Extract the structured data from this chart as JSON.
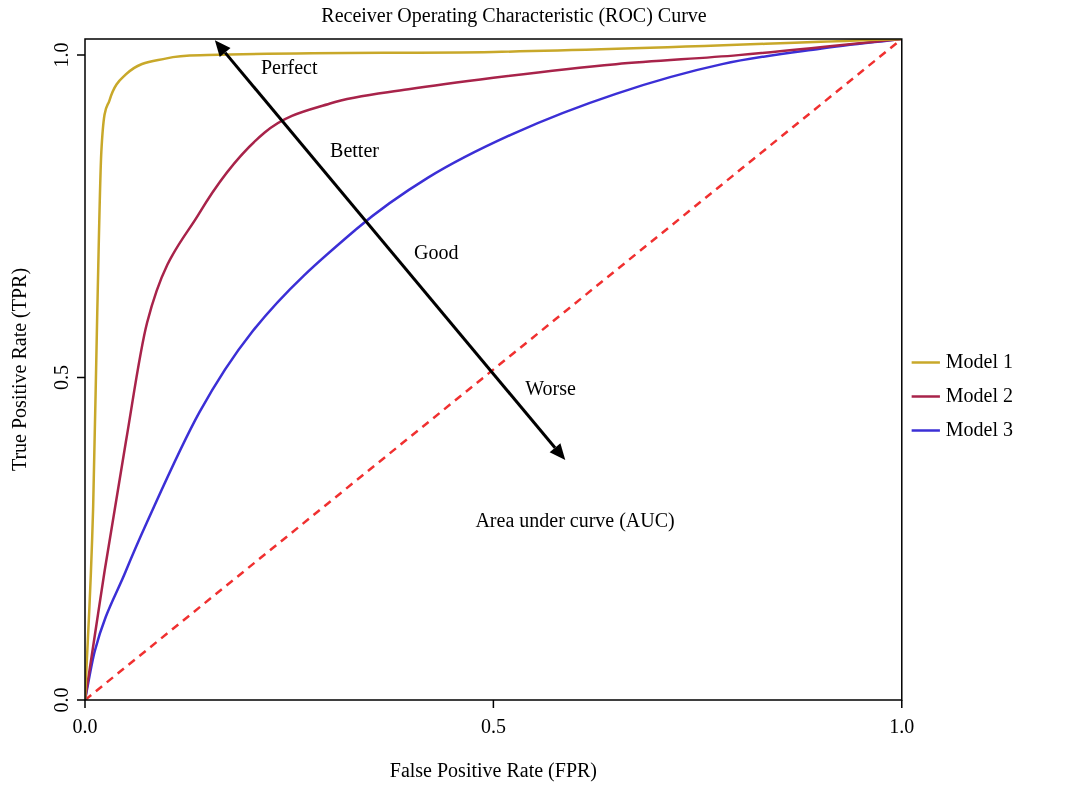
{
  "chart_data": {
    "type": "line",
    "title": "Receiver Operating Characteristic (ROC) Curve",
    "xlabel": "False Positive Rate (FPR)",
    "ylabel": "True Positive Rate (TPR)",
    "xlim": [
      0,
      1.0
    ],
    "ylim": [
      0,
      1.025
    ],
    "xticks": [
      {
        "value": 0,
        "label": "0.0"
      },
      {
        "value": 0.5,
        "label": "0.5"
      },
      {
        "value": 1,
        "label": "1.0"
      }
    ],
    "yticks": [
      {
        "value": 0,
        "label": "0.0"
      },
      {
        "value": 0.5,
        "label": "0.5"
      },
      {
        "value": 1,
        "label": "1.0"
      }
    ],
    "grid": false,
    "legend": "right",
    "marker": "none",
    "series": [
      {
        "name": "Model 1",
        "color": "#c8a82a",
        "x": [
          0,
          0.01,
          0.015,
          0.02,
          0.03,
          0.05,
          0.1,
          0.15,
          0.5,
          1
        ],
        "values": [
          0,
          0.3,
          0.6,
          0.85,
          0.93,
          0.97,
          0.995,
          1.0,
          1.005,
          1.025
        ]
      },
      {
        "name": "Model 2",
        "color": "#a8234a",
        "x": [
          0,
          0.012,
          0.024,
          0.05,
          0.076,
          0.14,
          0.22,
          0.3,
          0.396,
          0.5,
          0.65,
          0.8,
          1
        ],
        "values": [
          0,
          0.1,
          0.2,
          0.4,
          0.585,
          0.755,
          0.88,
          0.925,
          0.947,
          0.965,
          0.986,
          1.0,
          1.025
        ]
      },
      {
        "name": "Model 3",
        "color": "#3b2fd6",
        "x": [
          0,
          0.012,
          0.05,
          0.076,
          0.14,
          0.204,
          0.332,
          0.42,
          0.524,
          0.65,
          0.78,
          0.9,
          1
        ],
        "values": [
          0,
          0.076,
          0.2,
          0.276,
          0.446,
          0.57,
          0.73,
          0.81,
          0.878,
          0.94,
          0.986,
          1.01,
          1.025
        ]
      },
      {
        "color": "#f03030",
        "line_style": "dashed",
        "x": [
          0,
          1
        ],
        "values": [
          0,
          1.025
        ]
      }
    ],
    "annotations": [
      "Perfect",
      "Better",
      "Good",
      "Worse",
      "Area under curve (AUC)"
    ]
  }
}
